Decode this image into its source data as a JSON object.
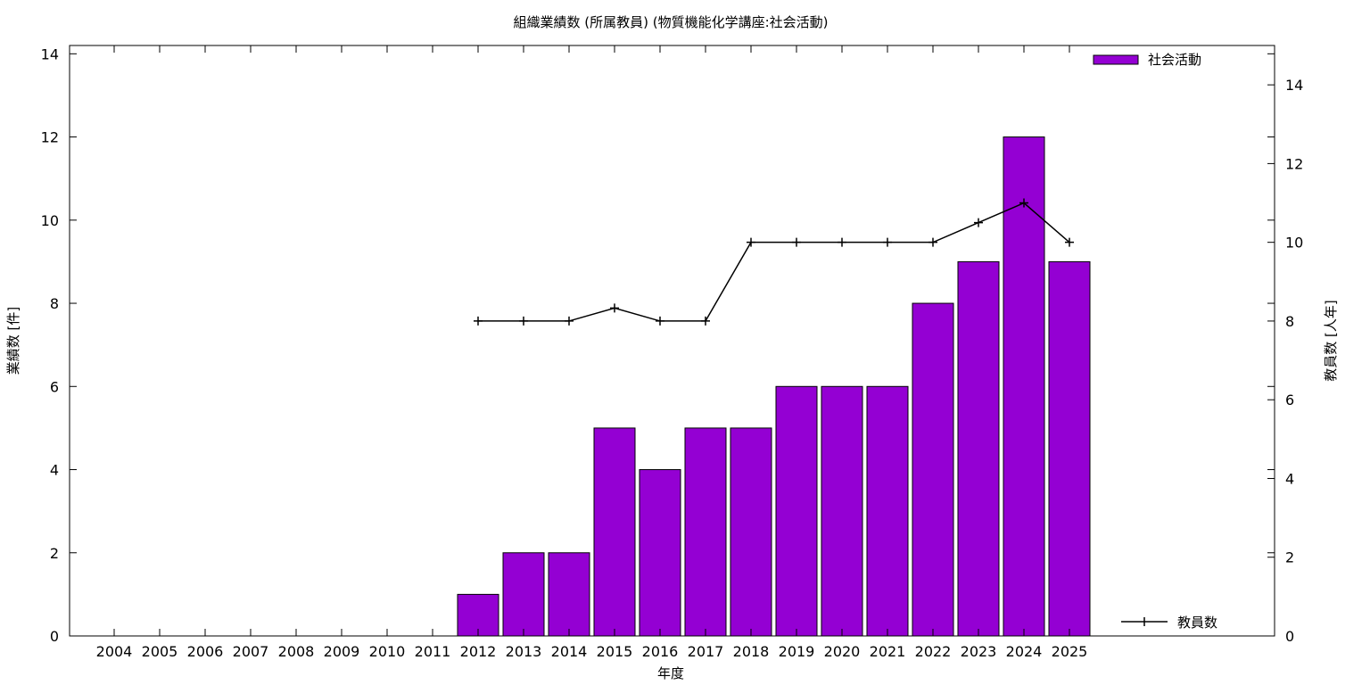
{
  "chart_data": {
    "type": "bar",
    "title": "組織業績数 (所属教員) (物質機能化学講座:社会活動)",
    "xlabel": "年度",
    "ylabel": "業績数 [件]",
    "y2label": "教員数 [人年]",
    "categories": [
      "2004",
      "2005",
      "2006",
      "2007",
      "2008",
      "2009",
      "2010",
      "2011",
      "2012",
      "2013",
      "2014",
      "2015",
      "2016",
      "2017",
      "2018",
      "2019",
      "2020",
      "2021",
      "2022",
      "2023",
      "2024",
      "2025"
    ],
    "ylim": [
      0,
      14.2
    ],
    "y2lim": [
      0,
      15
    ],
    "yticks": [
      0,
      2,
      4,
      6,
      8,
      10,
      12,
      14
    ],
    "y2ticks": [
      0,
      2,
      4,
      6,
      8,
      10,
      12,
      14
    ],
    "grid": false,
    "series": [
      {
        "name": "社会活動",
        "type": "bar",
        "axis": "left",
        "color": "#9400d3",
        "legend_position": "top-right",
        "values": [
          0,
          0,
          0,
          0,
          0,
          0,
          0,
          0,
          1,
          2,
          2,
          5,
          4,
          5,
          5,
          6,
          6,
          6,
          8,
          9,
          12,
          9
        ]
      },
      {
        "name": "教員数",
        "type": "line",
        "axis": "right",
        "color": "#000000",
        "marker": "plus",
        "legend_position": "bottom-right",
        "values": [
          null,
          null,
          null,
          null,
          null,
          null,
          null,
          null,
          8,
          8,
          8,
          8.33,
          8,
          8,
          10,
          10,
          10,
          10,
          10,
          10.5,
          11,
          10
        ]
      }
    ]
  }
}
